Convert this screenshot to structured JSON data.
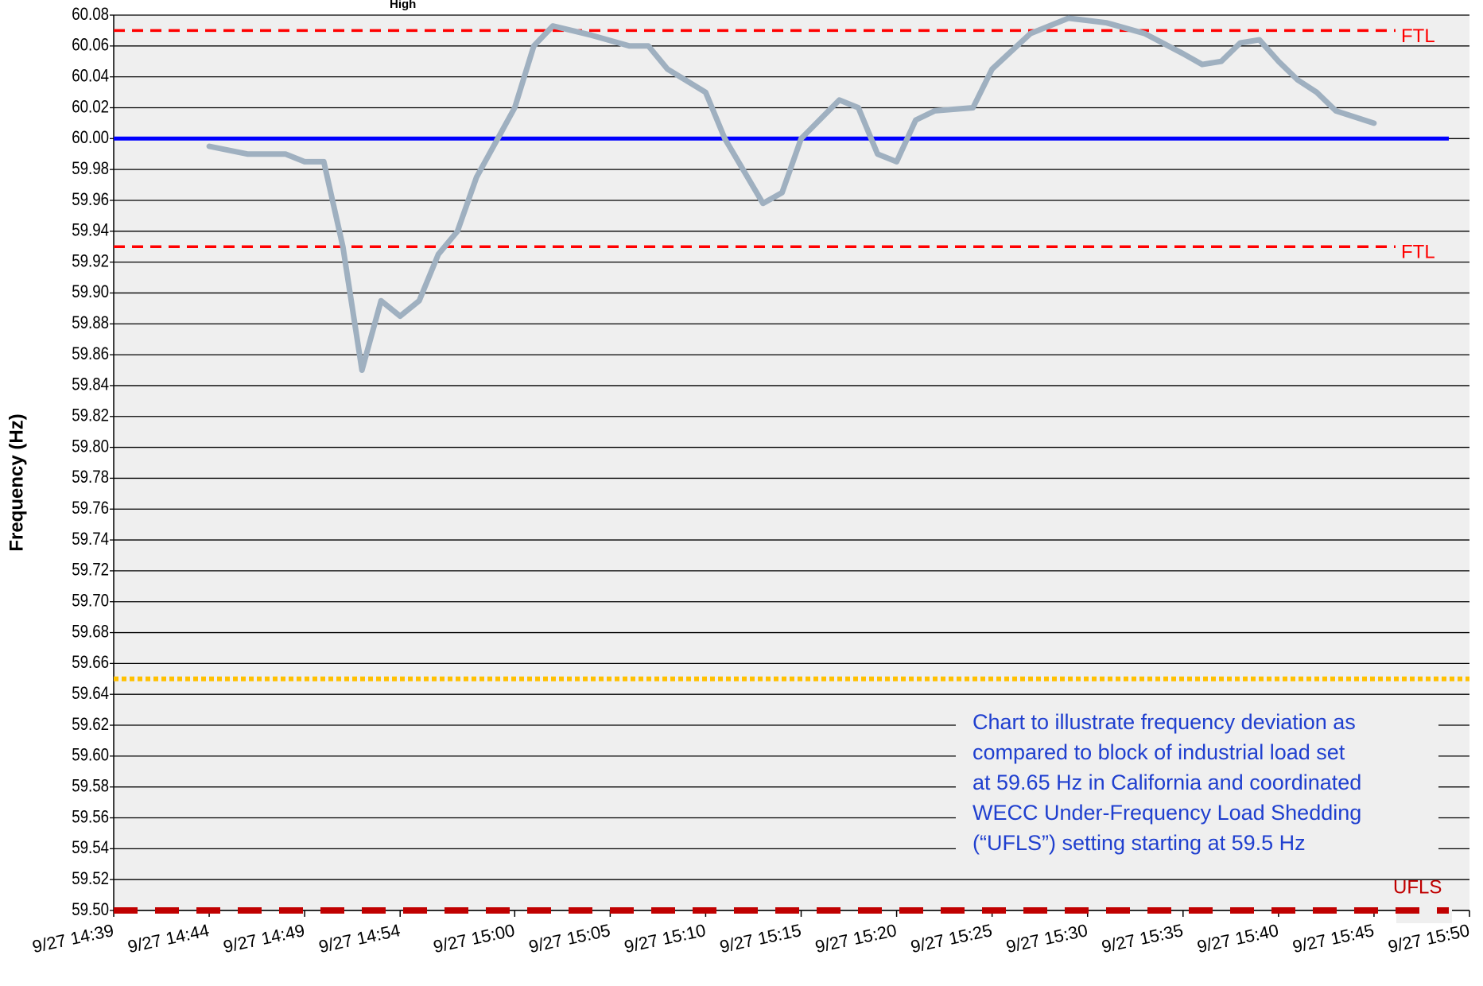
{
  "chart_data": {
    "type": "line",
    "corner_note": "High",
    "y_axis_label": "Frequency (Hz)",
    "ylim": [
      59.5,
      60.08
    ],
    "yticks": [
      {
        "value": 59.5,
        "label": "59.50"
      },
      59.52,
      59.54,
      59.56,
      59.58,
      {
        "value": 59.6,
        "label": "59.60"
      },
      59.62,
      59.64,
      59.66,
      59.68,
      {
        "value": 59.7,
        "label": "59.70"
      },
      59.72,
      59.74,
      59.76,
      59.78,
      {
        "value": 59.8,
        "label": "59.80"
      },
      59.82,
      59.84,
      59.86,
      59.88,
      {
        "value": 59.9,
        "label": "59.90"
      },
      59.92,
      59.94,
      59.96,
      59.98,
      {
        "value": 60,
        "label": "60.00"
      },
      60.02,
      60.04,
      60.06,
      60.08
    ],
    "grid": true,
    "xlim": [
      "9/27 14:39",
      "9/27 15:50"
    ],
    "xticks": [
      "9/27 14:39",
      "9/27 14:44",
      "9/27 14:49",
      "9/27 14:54",
      "9/27 15:00",
      "9/27 15:05",
      "9/27 15:10",
      "9/27 15:15",
      "9/27 15:20",
      "9/27 15:25",
      "9/27 15:30",
      "9/27 15:35",
      "9/27 15:40",
      "9/27 15:45",
      "9/27 15:50"
    ],
    "x": [
      "9/27 14:44",
      "9/27 14:46",
      "9/27 14:48",
      "9/27 14:49",
      "9/27 14:50",
      "9/27 14:51",
      "9/27 14:52",
      "9/27 14:53",
      "9/27 14:54",
      "9/27 14:55",
      "9/27 14:56",
      "9/27 14:57",
      "9/27 14:58",
      "9/27 15:00",
      "9/27 15:01",
      "9/27 15:02",
      "9/27 15:04",
      "9/27 15:06",
      "9/27 15:07",
      "9/27 15:08",
      "9/27 15:10",
      "9/27 15:11",
      "9/27 15:13",
      "9/27 15:14",
      "9/27 15:15",
      "9/27 15:17",
      "9/27 15:18",
      "9/27 15:19",
      "9/27 15:20",
      "9/27 15:21",
      "9/27 15:22",
      "9/27 15:24",
      "9/27 15:25",
      "9/27 15:27",
      "9/27 15:29",
      "9/27 15:31",
      "9/27 15:33",
      "9/27 15:35",
      "9/27 15:36",
      "9/27 15:37",
      "9/27 15:38",
      "9/27 15:39",
      "9/27 15:40",
      "9/27 15:41",
      "9/27 15:42",
      "9/27 15:43",
      "9/27 15:45"
    ],
    "series": [
      {
        "color": "#9fb0c0",
        "values": [
          59.995,
          59.99,
          59.99,
          59.985,
          59.985,
          59.93,
          59.85,
          59.895,
          59.885,
          59.895,
          59.925,
          59.94,
          59.975,
          60.02,
          60.06,
          60.073,
          60.067,
          60.06,
          60.06,
          60.045,
          60.03,
          60.0,
          59.958,
          59.965,
          60.0,
          60.025,
          60.02,
          59.99,
          59.985,
          60.012,
          60.018,
          60.02,
          60.045,
          60.068,
          60.078,
          60.075,
          60.068,
          60.055,
          60.048,
          60.05,
          60.062,
          60.064,
          60.05,
          60.038,
          60.03,
          60.018,
          60.01
        ]
      }
    ],
    "reference_lines": [
      {
        "value": 60.07,
        "label": "FTL",
        "color": "#ff0000",
        "style": "dashed"
      },
      {
        "value": 59.93,
        "label": "FTL",
        "color": "#ff0000",
        "style": "dashed"
      },
      {
        "value": 60,
        "color": "#0000ff",
        "style": "solid"
      },
      {
        "value": 59.65,
        "color": "#ffc000",
        "style": "dotted"
      },
      {
        "value": 59.5,
        "label": "UFLS",
        "color": "#c00000",
        "style": "heavy-dashed"
      }
    ],
    "annotation": [
      "Chart to illustrate frequency deviation as",
      "compared to block of industrial load set",
      "at 59.65 Hz in California and coordinated",
      "WECC Under-Frequency Load Shedding",
      "(“UFLS”) setting starting at 59.5 Hz"
    ],
    "annotation_color": "#1f3fcf"
  }
}
